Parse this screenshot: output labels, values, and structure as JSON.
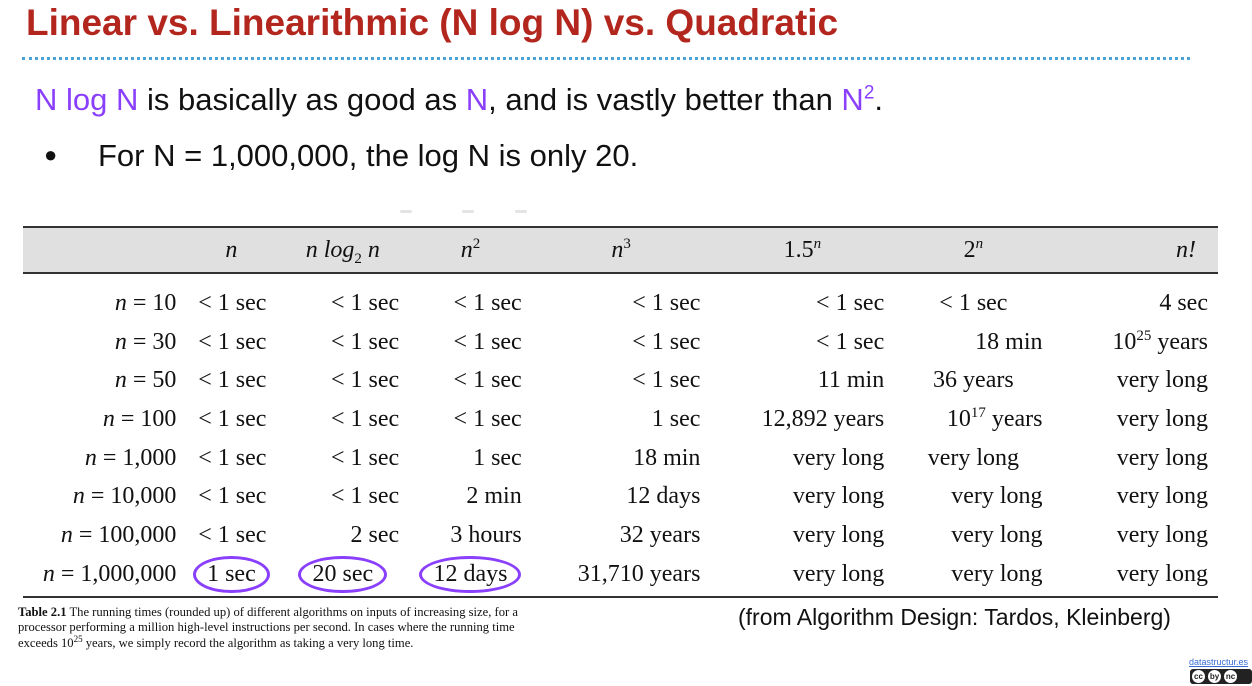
{
  "title": "Linear vs. Linearithmic (N log N) vs. Quadratic",
  "lead": {
    "part1": "N log N",
    "part2": " is basically as good as ",
    "part3": "N",
    "part4": ", and is vastly better than ",
    "part5": "N",
    "part5_sup": "2",
    "part6": "."
  },
  "bullet": {
    "symbol": "●",
    "text": "For N = 1,000,000, the log N is only 20."
  },
  "table": {
    "headers": {
      "h1": "n",
      "h2_pre": "n log",
      "h2_sub": "2",
      "h2_post": " n",
      "h3": "n",
      "h3_sup": "2",
      "h4": "n",
      "h4_sup": "3",
      "h5": "1.5",
      "h5_sup": "n",
      "h6": "2",
      "h6_sup": "n",
      "h7": "n!"
    },
    "rows": [
      {
        "n": "n",
        "eq": " = 10",
        "c1": "< 1 sec",
        "c2": "< 1 sec",
        "c3": "< 1 sec",
        "c4": "< 1 sec",
        "c5": "< 1 sec",
        "c6": "< 1 sec",
        "c7": "4 sec"
      },
      {
        "n": "n",
        "eq": " = 30",
        "c1": "< 1 sec",
        "c2": "< 1 sec",
        "c3": "< 1 sec",
        "c4": "< 1 sec",
        "c5": "< 1 sec",
        "c6": "18 min",
        "c7a": "10",
        "c7sup": "25",
        "c7b": " years"
      },
      {
        "n": "n",
        "eq": " = 50",
        "c1": "< 1 sec",
        "c2": "< 1 sec",
        "c3": "< 1 sec",
        "c4": "< 1 sec",
        "c5": "11 min",
        "c6": "36 years",
        "c7": "very long"
      },
      {
        "n": "n",
        "eq": " = 100",
        "c1": "< 1 sec",
        "c2": "< 1 sec",
        "c3": "< 1 sec",
        "c4": "1 sec",
        "c5": "12,892 years",
        "c6a": "10",
        "c6sup": "17",
        "c6b": " years",
        "c7": "very long"
      },
      {
        "n": "n",
        "eq": " = 1,000",
        "c1": "< 1 sec",
        "c2": "< 1 sec",
        "c3": "1 sec",
        "c4": "18 min",
        "c5": "very long",
        "c6": "very long",
        "c7": "very long"
      },
      {
        "n": "n",
        "eq": " = 10,000",
        "c1": "< 1 sec",
        "c2": "< 1 sec",
        "c3": "2 min",
        "c4": "12 days",
        "c5": "very long",
        "c6": "very long",
        "c7": "very long"
      },
      {
        "n": "n",
        "eq": " = 100,000",
        "c1": "< 1 sec",
        "c2": "2 sec",
        "c3": "3 hours",
        "c4": "32 years",
        "c5": "very long",
        "c6": "very long",
        "c7": "very long"
      },
      {
        "n": "n",
        "eq": " = 1,000,000",
        "c1": "1 sec",
        "c2": "20 sec",
        "c3": "12 days",
        "c4": "31,710 years",
        "c5": "very long",
        "c6": "very long",
        "c7": "very long"
      }
    ]
  },
  "caption": {
    "label": "Table 2.1",
    "text1": " The running times (rounded up) of different algorithms on inputs of increasing size, for a processor performing a million high-level instructions per second. In cases where the running time exceeds 10",
    "sup": "25",
    "text2": " years, we simply record the algorithm as taking a very long time."
  },
  "source": "(from Algorithm Design: Tardos, Kleinberg)",
  "footer": {
    "link": "datastructur.es",
    "license_icons": [
      "cc",
      "by",
      "nc",
      "sa"
    ]
  },
  "colors": {
    "title": "#b3261e",
    "accent_purple": "#8a3ffc",
    "rule_dots": "#4aa3d8",
    "table_header_bg": "#e0e0e0"
  }
}
